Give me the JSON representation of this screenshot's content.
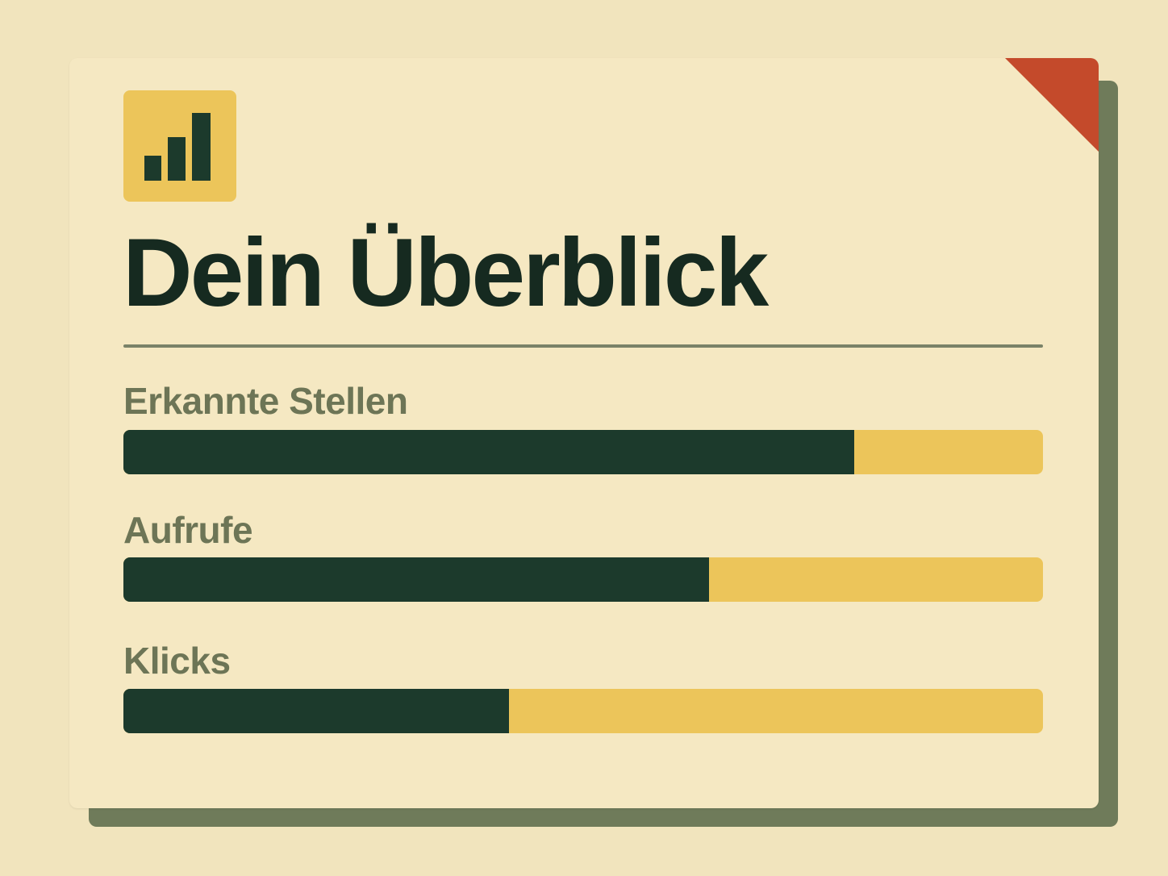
{
  "colors": {
    "page_background": "#f1e4bd",
    "card_background": "#f5e8c2",
    "card_shadow": "#6f7b5a",
    "accent_yellow": "#ecc55a",
    "bar_fill": "#1c3a2c",
    "title_text": "#162a20",
    "label_text": "#6d7556",
    "corner_flag": "#c44a2b"
  },
  "header": {
    "icon": "bar-chart-icon",
    "title": "Dein Überblick"
  },
  "metrics": [
    {
      "label": "Erkannte Stellen",
      "progress": 0.795
    },
    {
      "label": "Aufrufe",
      "progress": 0.637
    },
    {
      "label": "Klicks",
      "progress": 0.419
    }
  ]
}
